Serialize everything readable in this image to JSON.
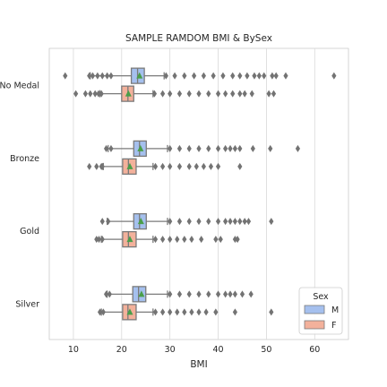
{
  "chart_data": {
    "type": "boxplot",
    "title": "SAMPLE RAMDOM BMI & BySex",
    "xlabel": "BMI",
    "ylabel": "",
    "xlim": [
      5,
      67
    ],
    "xticks": [
      "10",
      "20",
      "30",
      "40",
      "50",
      "60"
    ],
    "xtick_values": [
      10,
      20,
      30,
      40,
      50,
      60
    ],
    "grid": "vertical",
    "orientation": "horizontal",
    "categories": [
      "No Medal",
      "Bronze",
      "Gold",
      "Silver"
    ],
    "legend": {
      "title": "Sex",
      "placement": "lower-right"
    },
    "series": [
      {
        "name": "M",
        "color": "#a5c0ee",
        "boxes": [
          {
            "min": 13.5,
            "q1": 22.0,
            "median": 23.3,
            "q3": 24.7,
            "max": 28.8,
            "mean": 23.7,
            "outliers": [
              8.3,
              13.3,
              14.0,
              15.0,
              16.0,
              17.0,
              17.8,
              29.2,
              31,
              33,
              35,
              37,
              39,
              41,
              43,
              44.5,
              46,
              47.5,
              48.5,
              49.5,
              51.2,
              52.0,
              54.0,
              64.0
            ]
          },
          {
            "min": 17.2,
            "q1": 22.5,
            "median": 23.7,
            "q3": 25.1,
            "max": 29.5,
            "mean": 23.9,
            "outliers": [
              16.8,
              17.8,
              30,
              32,
              34,
              36,
              38,
              40,
              41.5,
              42.5,
              43.5,
              44.5,
              47.2,
              50.8,
              56.5
            ]
          },
          {
            "min": 17.0,
            "q1": 22.5,
            "median": 23.7,
            "q3": 25.1,
            "max": 29.5,
            "mean": 24.0,
            "outliers": [
              16.0,
              17.2,
              30,
              32,
              34,
              36,
              38,
              40,
              41.5,
              42.5,
              43.5,
              44.5,
              45.5,
              46.3,
              51.0
            ]
          },
          {
            "min": 17.0,
            "q1": 22.3,
            "median": 23.5,
            "q3": 25.0,
            "max": 29.5,
            "mean": 24.1,
            "outliers": [
              16.8,
              17.5,
              30,
              32,
              34,
              36,
              38,
              40,
              41.5,
              42.5,
              43.5,
              45.0,
              46.8
            ]
          }
        ]
      },
      {
        "name": "F",
        "color": "#f3b19b",
        "boxes": [
          {
            "min": 15.5,
            "q1": 20.0,
            "median": 21.3,
            "q3": 22.5,
            "max": 26.5,
            "mean": 21.4,
            "outliers": [
              10.5,
              12.5,
              13.5,
              14.5,
              15.2,
              15.8,
              26.8,
              28.5,
              30,
              32,
              34,
              36,
              38,
              40,
              41.5,
              43,
              44.5,
              45.5,
              47.0,
              50.5,
              51.5
            ]
          },
          {
            "min": 16.2,
            "q1": 20.2,
            "median": 21.4,
            "q3": 23.0,
            "max": 26.5,
            "mean": 21.7,
            "outliers": [
              13.3,
              14.8,
              15.8,
              16.0,
              27,
              28.5,
              30,
              32,
              34,
              35.5,
              37,
              38.5,
              40,
              44.5
            ]
          },
          {
            "min": 15.8,
            "q1": 20.2,
            "median": 21.4,
            "q3": 23.0,
            "max": 26.5,
            "mean": 21.7,
            "outliers": [
              14.8,
              15.3,
              16.0,
              27,
              28.5,
              30,
              31.5,
              33,
              34.5,
              36.5,
              39.5,
              40.5,
              43.5,
              44.0
            ]
          },
          {
            "min": 15.8,
            "q1": 20.2,
            "median": 21.3,
            "q3": 23.0,
            "max": 26.5,
            "mean": 21.7,
            "outliers": [
              15.5,
              16.2,
              27,
              28.5,
              30,
              31.5,
              33,
              34.5,
              36,
              37.5,
              39.5,
              43.5,
              51.0
            ]
          }
        ]
      }
    ]
  }
}
